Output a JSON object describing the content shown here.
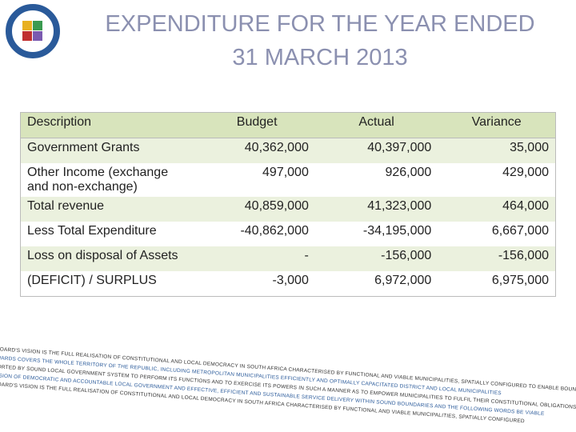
{
  "title": [
    "EXPENDITURE FOR THE YEAR ENDED",
    "31 MARCH 2013"
  ],
  "table": {
    "header": [
      "Description",
      "Budget",
      "Actual",
      "Variance"
    ],
    "rows": [
      [
        "Government Grants",
        "40,362,000",
        "40,397,000",
        "35,000"
      ],
      [
        "Other Income (exchange and non-exchange)",
        "497,000",
        "926,000",
        "429,000"
      ],
      [
        "Total revenue",
        "40,859,000",
        "41,323,000",
        "464,000"
      ],
      [
        "Less Total Expenditure",
        "-40,862,000",
        "-34,195,000",
        "6,667,000"
      ],
      [
        "Loss on disposal of Assets",
        "-",
        "-156,000",
        "-156,000"
      ],
      [
        "(DEFICIT) / SURPLUS",
        "-3,000",
        "6,972,000",
        "6,975,000"
      ]
    ]
  },
  "footer_text": [
    "THE BOARD'S VISION IS THE FULL REALISATION OF CONSTITUTIONAL AND LOCAL DEMOCRACY IN SOUTH AFRICA CHARACTERISED BY FUNCTIONAL AND VIABLE MUNICIPALITIES, SPATIALLY CONFIGURED TO ENABLE BOUNDARIES",
    "AND WARDS COVERS THE WHOLE TERRITORY OF THE REPUBLIC, INCLUDING METROPOLITAN MUNICIPALITIES EFFICIENTLY AND OPTIMALLY CAPACITATED DISTRICT AND LOCAL MUNICIPALITIES",
    "SUPPORTED BY SOUND LOCAL GOVERNMENT SYSTEM TO PERFORM ITS FUNCTIONS AND TO EXERCISE ITS POWERS IN SUCH A MANNER AS TO EMPOWER MUNICIPALITIES TO FULFIL THEIR CONSTITUTIONAL OBLIGATIONS",
    "PROVISION OF DEMOCRATIC AND ACCOUNTABLE LOCAL GOVERNMENT AND EFFECTIVE, EFFICIENT AND SUSTAINABLE SERVICE DELIVERY WITHIN SOUND BOUNDARIES AND THE FOLLOWING WORDS BE VIABLE",
    "THE BOARD'S VISION IS THE FULL REALISATION OF CONSTITUTIONAL AND LOCAL DEMOCRACY IN SOUTH AFRICA CHARACTERISED BY FUNCTIONAL AND VIABLE MUNICIPALITIES, SPATIALLY CONFIGURED"
  ]
}
